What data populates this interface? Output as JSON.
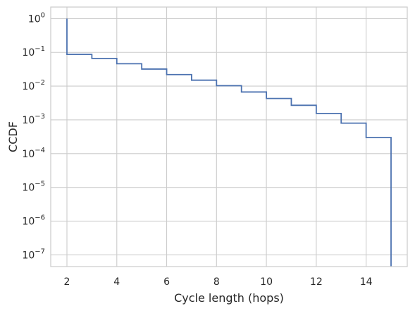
{
  "chart_data": {
    "type": "line",
    "title": "",
    "xlabel": "Cycle length (hops)",
    "ylabel": "CCDF",
    "xlim": [
      1.35,
      15.65
    ],
    "ylim": [
      4.5e-08,
      2.2
    ],
    "yscale": "log",
    "grid": true,
    "legend": "none",
    "x_ticks": [
      {
        "value": 2,
        "label": "2"
      },
      {
        "value": 4,
        "label": "4"
      },
      {
        "value": 6,
        "label": "6"
      },
      {
        "value": 8,
        "label": "8"
      },
      {
        "value": 10,
        "label": "10"
      },
      {
        "value": 12,
        "label": "12"
      },
      {
        "value": 14,
        "label": "14"
      }
    ],
    "y_ticks": [
      {
        "value": 1,
        "base": "10",
        "exp": "0"
      },
      {
        "value": 0.1,
        "base": "10",
        "exp": "−1"
      },
      {
        "value": 0.01,
        "base": "10",
        "exp": "−2"
      },
      {
        "value": 0.001,
        "base": "10",
        "exp": "−3"
      },
      {
        "value": 0.0001,
        "base": "10",
        "exp": "−4"
      },
      {
        "value": 1e-05,
        "base": "10",
        "exp": "−5"
      },
      {
        "value": 1e-06,
        "base": "10",
        "exp": "−6"
      },
      {
        "value": 1e-07,
        "base": "10",
        "exp": "−7"
      }
    ],
    "series": [
      {
        "color": "#4c72b0",
        "drawstyle": "steps-post",
        "x": [
          2,
          3,
          4,
          5,
          6,
          7,
          8,
          9,
          10,
          11,
          12,
          13,
          14,
          15
        ],
        "y": [
          0.087,
          0.066,
          0.046,
          0.032,
          0.022,
          0.015,
          0.0103,
          0.0067,
          0.0043,
          0.0027,
          0.00155,
          0.0008,
          0.0003,
          0.0003
        ],
        "start_value": 1.0,
        "end_value": 4.5e-08
      }
    ],
    "colors": {
      "line": "#4c72b0",
      "grid": "#cccccc",
      "axes_edge": "#cccccc",
      "text": "#262626"
    }
  }
}
